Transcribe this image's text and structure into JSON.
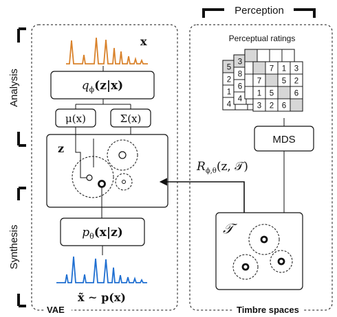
{
  "labels": {
    "perception": "Perception",
    "analysis": "Analysis",
    "synthesis": "Synthesis",
    "vae": "VAE",
    "timbre_spaces": "Timbre spaces",
    "perceptual_ratings": "Perceptual ratings",
    "mds": "MDS"
  },
  "math": {
    "x": "x",
    "encoder": "q",
    "encoder_sub": "ϕ",
    "encoder_args": "(z|x)",
    "mu": "μ(x)",
    "sigma": "Σ(x)",
    "z": "z",
    "decoder": "p",
    "decoder_sub": "θ",
    "decoder_args": "(x|z)",
    "recon": "x̃ ∼ p(x)",
    "reg": "R",
    "reg_sub": "ϕ,θ",
    "reg_args": "(z, 𝒯)",
    "T": "𝒯"
  },
  "matrix_front": [
    [
      "",
      "7",
      "1",
      "3"
    ],
    [
      "7",
      "",
      "5",
      "2"
    ],
    [
      "1",
      "5",
      "",
      "6"
    ],
    [
      "3",
      "2",
      "6",
      ""
    ]
  ],
  "matrix_side_cols": [
    [
      "5",
      "2",
      "1",
      "4"
    ],
    [
      "3",
      "8",
      "6",
      "4"
    ]
  ],
  "colors": {
    "orange": "#d9822b",
    "blue": "#1f6fd1",
    "diag": "#d7d7d7"
  }
}
